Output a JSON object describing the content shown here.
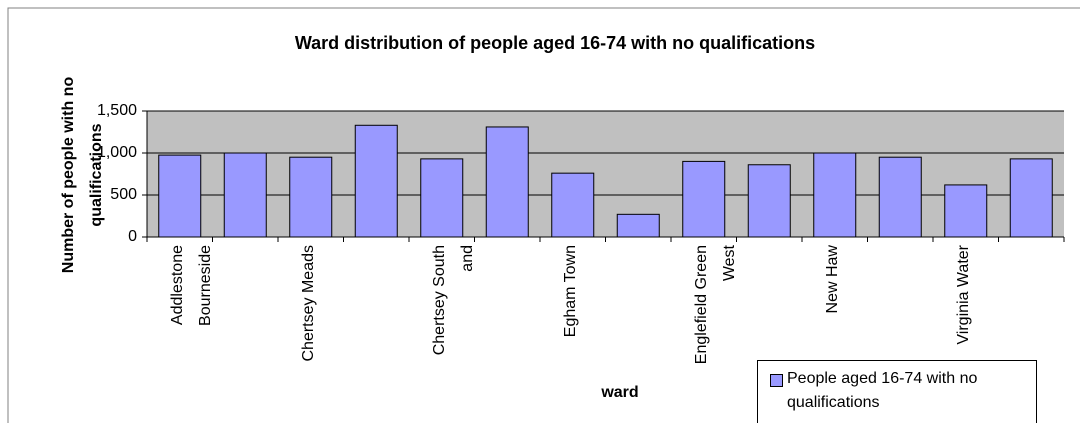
{
  "chart_data": {
    "type": "bar",
    "title": "Ward distribution of people aged 16-74 with no qualifications",
    "x_label": "ward",
    "y_label": "Number of people with no qualifications",
    "categories": [
      "Addlestone Bourneside",
      null,
      "Chertsey Meads",
      null,
      "Chertsey South and",
      null,
      "Egham Town",
      null,
      "Englefield Green West",
      null,
      "New Haw",
      null,
      "Virginia Water",
      null
    ],
    "series": [
      {
        "name": "People aged 16-74 with no qualifications",
        "color": "#9999ff",
        "values": [
          975,
          1000,
          950,
          1330,
          930,
          1310,
          760,
          270,
          900,
          860,
          1000,
          950,
          620,
          930
        ]
      }
    ],
    "ylim": [
      0,
      1500
    ],
    "yticks": [
      0,
      500,
      {
        "value": 1000,
        "label": "1,000"
      },
      {
        "value": 1500,
        "label": "1,500"
      }
    ],
    "grid": true,
    "legend_position": "bottom-right"
  }
}
